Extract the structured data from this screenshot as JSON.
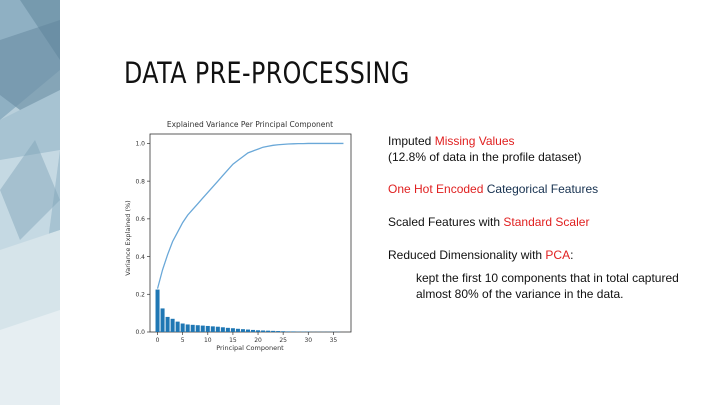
{
  "slide": {
    "title": "DATA PRE-PROCESSING",
    "bullets": {
      "b1_line1_a": "Imputed ",
      "b1_line1_b": "Missing Values",
      "b1_line2": "(12.8% of data in the profile dataset)",
      "b2_a": "One Hot Encoded",
      "b2_b": " Categorical Features",
      "b3_a": "Scaled Features with ",
      "b3_b": "Standard Scaler",
      "b4_a": "Reduced Dimensionality with ",
      "b4_b": "PCA",
      "b4_c": ":",
      "sub_line1": "kept the first 10 components that  in total captured",
      "sub_line2": "almost 80% of the variance in the data."
    },
    "colors": {
      "highlight": "#e02020",
      "dark_blue": "#15304f",
      "bar": "#1f77b4",
      "line": "#6aa8d8"
    }
  },
  "chart_data": {
    "type": "bar",
    "title": "Explained Variance Per Principal Component",
    "xlabel": "Principal Component",
    "ylabel": "Variance Explained (%)",
    "xlim": [
      -1.5,
      38.5
    ],
    "ylim": [
      0,
      1.05
    ],
    "xticks": [
      0,
      5,
      10,
      15,
      20,
      25,
      30,
      35
    ],
    "yticks": [
      0.0,
      0.2,
      0.4,
      0.6,
      0.8,
      1.0
    ],
    "ytick_labels": [
      "0.0",
      "0.2",
      "0.4",
      "0.6",
      "0.8",
      "1.0"
    ],
    "grid": false,
    "series": [
      {
        "type": "bar",
        "x": [
          0,
          1,
          2,
          3,
          4,
          5,
          6,
          7,
          8,
          9,
          10,
          11,
          12,
          13,
          14,
          15,
          16,
          17,
          18,
          19,
          20,
          21,
          22,
          23,
          24,
          25,
          26,
          27,
          28,
          29,
          30,
          31,
          32,
          33,
          34,
          35,
          36,
          37
        ],
        "values": [
          0.225,
          0.125,
          0.08,
          0.07,
          0.055,
          0.045,
          0.04,
          0.038,
          0.036,
          0.034,
          0.032,
          0.03,
          0.028,
          0.025,
          0.022,
          0.02,
          0.017,
          0.015,
          0.013,
          0.011,
          0.009,
          0.008,
          0.007,
          0.006,
          0.005,
          0.004,
          0.003,
          0.003,
          0.002,
          0.002,
          0.002,
          0.001,
          0.001,
          0.001,
          0.001,
          0.001,
          0.001,
          0
        ]
      },
      {
        "type": "line",
        "x": [
          0,
          1,
          2,
          3,
          4,
          5,
          6,
          7,
          8,
          9,
          10,
          11,
          12,
          13,
          14,
          15,
          16,
          17,
          18,
          19,
          20,
          21,
          22,
          23,
          24,
          25,
          26,
          27,
          28,
          29,
          30,
          31,
          32,
          33,
          34,
          35,
          36,
          37
        ],
        "values": [
          0.23,
          0.33,
          0.41,
          0.48,
          0.53,
          0.58,
          0.62,
          0.65,
          0.68,
          0.71,
          0.74,
          0.77,
          0.8,
          0.83,
          0.86,
          0.89,
          0.91,
          0.93,
          0.95,
          0.96,
          0.97,
          0.98,
          0.985,
          0.99,
          0.993,
          0.995,
          0.997,
          0.998,
          0.999,
          0.999,
          1.0,
          1.0,
          1.0,
          1.0,
          1.0,
          1.0,
          1.0,
          1.0
        ]
      }
    ]
  }
}
